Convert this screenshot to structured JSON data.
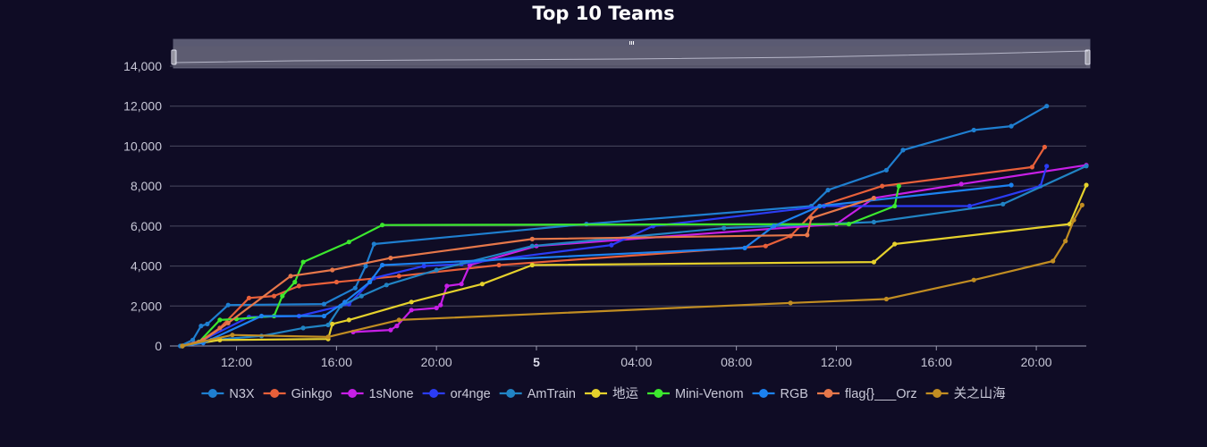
{
  "chart_data": {
    "type": "line",
    "title": "Top 10 Teams",
    "xlabel": "",
    "ylabel": "",
    "ylim": [
      0,
      14000
    ],
    "xlim": [
      "2024-01-04 09:20",
      "2024-01-05 22:00"
    ],
    "grid": true,
    "legend_position": "bottom",
    "x_ticks": [
      {
        "label": "12:00",
        "at": "2024-01-04 12:00"
      },
      {
        "label": "16:00",
        "at": "2024-01-04 16:00"
      },
      {
        "label": "20:00",
        "at": "2024-01-04 20:00"
      },
      {
        "label": "5",
        "at": "2024-01-05 00:00",
        "bold": true
      },
      {
        "label": "04:00",
        "at": "2024-01-05 04:00"
      },
      {
        "label": "08:00",
        "at": "2024-01-05 08:00"
      },
      {
        "label": "12:00",
        "at": "2024-01-05 12:00"
      },
      {
        "label": "16:00",
        "at": "2024-01-05 16:00"
      },
      {
        "label": "20:00",
        "at": "2024-01-05 20:00"
      }
    ],
    "y_ticks": [
      "0",
      "2,000",
      "4,000",
      "6,000",
      "8,000",
      "10,000",
      "12,000",
      "14,000"
    ],
    "series": [
      {
        "name": "N3X",
        "color": "#1f7fd0",
        "points": [
          [
            "2024-01-04 09:45",
            0
          ],
          [
            "2024-01-04 10:15",
            300
          ],
          [
            "2024-01-04 10:35",
            1000
          ],
          [
            "2024-01-04 10:50",
            1100
          ],
          [
            "2024-01-04 11:40",
            2050
          ],
          [
            "2024-01-04 15:30",
            2100
          ],
          [
            "2024-01-04 16:45",
            2900
          ],
          [
            "2024-01-04 17:10",
            4000
          ],
          [
            "2024-01-04 17:30",
            5100
          ],
          [
            "2024-01-05 02:00",
            6100
          ],
          [
            "2024-01-05 11:00",
            7000
          ],
          [
            "2024-01-05 11:40",
            7800
          ],
          [
            "2024-01-05 14:00",
            8800
          ],
          [
            "2024-01-05 14:40",
            9800
          ],
          [
            "2024-01-05 17:30",
            10800
          ],
          [
            "2024-01-05 19:00",
            11000
          ],
          [
            "2024-01-05 20:25",
            12000
          ]
        ]
      },
      {
        "name": "Ginkgo",
        "color": "#e8603a",
        "points": [
          [
            "2024-01-04 09:50",
            0
          ],
          [
            "2024-01-04 10:30",
            200
          ],
          [
            "2024-01-04 11:20",
            900
          ],
          [
            "2024-01-04 12:30",
            2400
          ],
          [
            "2024-01-04 13:30",
            2500
          ],
          [
            "2024-01-04 14:30",
            3000
          ],
          [
            "2024-01-04 16:00",
            3200
          ],
          [
            "2024-01-04 18:30",
            3500
          ],
          [
            "2024-01-04 22:30",
            4050
          ],
          [
            "2024-01-05 09:10",
            5000
          ],
          [
            "2024-01-05 10:10",
            5500
          ],
          [
            "2024-01-05 11:20",
            7000
          ],
          [
            "2024-01-05 13:50",
            8000
          ],
          [
            "2024-01-05 19:50",
            8950
          ],
          [
            "2024-01-05 20:20",
            9950
          ]
        ]
      },
      {
        "name": "1sNone",
        "color": "#c71fe6",
        "points": [
          [
            "2024-01-04 16:40",
            700
          ],
          [
            "2024-01-04 18:10",
            800
          ],
          [
            "2024-01-04 18:25",
            1000
          ],
          [
            "2024-01-04 19:00",
            1800
          ],
          [
            "2024-01-04 20:00",
            1900
          ],
          [
            "2024-01-04 20:10",
            2050
          ],
          [
            "2024-01-04 20:25",
            3000
          ],
          [
            "2024-01-04 21:00",
            3100
          ],
          [
            "2024-01-04 21:20",
            4050
          ],
          [
            "2024-01-05 00:00",
            5000
          ],
          [
            "2024-01-05 12:00",
            6100
          ],
          [
            "2024-01-05 13:30",
            7400
          ],
          [
            "2024-01-05 17:00",
            8100
          ],
          [
            "2024-01-05 22:00",
            9050
          ]
        ]
      },
      {
        "name": "or4nge",
        "color": "#2b3cf5",
        "points": [
          [
            "2024-01-04 09:50",
            0
          ],
          [
            "2024-01-04 10:30",
            200
          ],
          [
            "2024-01-04 12:30",
            1450
          ],
          [
            "2024-01-04 14:30",
            1500
          ],
          [
            "2024-01-04 16:30",
            2100
          ],
          [
            "2024-01-04 17:30",
            3400
          ],
          [
            "2024-01-04 19:30",
            4000
          ],
          [
            "2024-01-04 21:00",
            4100
          ],
          [
            "2024-01-05 03:00",
            5050
          ],
          [
            "2024-01-05 04:40",
            6000
          ],
          [
            "2024-01-05 11:30",
            7000
          ],
          [
            "2024-01-05 17:20",
            7000
          ],
          [
            "2024-01-05 20:10",
            8000
          ],
          [
            "2024-01-05 20:25",
            9000
          ]
        ]
      },
      {
        "name": "AmTrain",
        "color": "#2184c4",
        "points": [
          [
            "2024-01-04 09:50",
            0
          ],
          [
            "2024-01-04 11:00",
            300
          ],
          [
            "2024-01-04 13:00",
            500
          ],
          [
            "2024-01-04 14:40",
            900
          ],
          [
            "2024-01-04 15:40",
            1050
          ],
          [
            "2024-01-04 16:10",
            2000
          ],
          [
            "2024-01-04 17:00",
            2500
          ],
          [
            "2024-01-04 18:00",
            3050
          ],
          [
            "2024-01-04 20:00",
            3800
          ],
          [
            "2024-01-04 23:50",
            5000
          ],
          [
            "2024-01-05 07:30",
            5900
          ],
          [
            "2024-01-05 13:30",
            6200
          ],
          [
            "2024-01-05 18:40",
            7100
          ],
          [
            "2024-01-05 22:00",
            9000
          ]
        ]
      },
      {
        "name": "地运",
        "color": "#e5d12c",
        "points": [
          [
            "2024-01-04 09:50",
            0
          ],
          [
            "2024-01-04 11:20",
            300
          ],
          [
            "2024-01-04 15:40",
            350
          ],
          [
            "2024-01-04 15:50",
            1100
          ],
          [
            "2024-01-04 16:30",
            1300
          ],
          [
            "2024-01-04 19:00",
            2200
          ],
          [
            "2024-01-04 21:50",
            3100
          ],
          [
            "2024-01-04 23:50",
            4050
          ],
          [
            "2024-01-05 13:30",
            4200
          ],
          [
            "2024-01-05 14:20",
            5100
          ],
          [
            "2024-01-05 21:20",
            6100
          ],
          [
            "2024-01-05 22:00",
            8050
          ]
        ]
      },
      {
        "name": "Mini-Venom",
        "color": "#3ce82e",
        "points": [
          [
            "2024-01-04 09:50",
            0
          ],
          [
            "2024-01-04 10:30",
            200
          ],
          [
            "2024-01-04 11:20",
            1300
          ],
          [
            "2024-01-04 12:00",
            1350
          ],
          [
            "2024-01-04 13:30",
            1500
          ],
          [
            "2024-01-04 13:50",
            2500
          ],
          [
            "2024-01-04 14:20",
            3200
          ],
          [
            "2024-01-04 14:40",
            4200
          ],
          [
            "2024-01-04 16:30",
            5200
          ],
          [
            "2024-01-04 17:50",
            6050
          ],
          [
            "2024-01-05 12:30",
            6100
          ],
          [
            "2024-01-05 14:20",
            7000
          ],
          [
            "2024-01-05 14:30",
            8000
          ]
        ]
      },
      {
        "name": "RGB",
        "color": "#1c82f0",
        "points": [
          [
            "2024-01-04 09:50",
            0
          ],
          [
            "2024-01-04 10:40",
            150
          ],
          [
            "2024-01-04 13:00",
            1500
          ],
          [
            "2024-01-04 15:30",
            1500
          ],
          [
            "2024-01-04 16:20",
            2200
          ],
          [
            "2024-01-04 17:20",
            3200
          ],
          [
            "2024-01-04 17:50",
            4050
          ],
          [
            "2024-01-05 08:20",
            4900
          ],
          [
            "2024-01-05 09:30",
            6000
          ],
          [
            "2024-01-05 11:20",
            7000
          ],
          [
            "2024-01-05 19:00",
            8050
          ]
        ]
      },
      {
        "name": "flag{}___Orz",
        "color": "#e6774a",
        "points": [
          [
            "2024-01-04 09:50",
            0
          ],
          [
            "2024-01-04 10:40",
            300
          ],
          [
            "2024-01-04 11:40",
            1150
          ],
          [
            "2024-01-04 14:10",
            3500
          ],
          [
            "2024-01-04 15:50",
            3800
          ],
          [
            "2024-01-04 18:10",
            4400
          ],
          [
            "2024-01-04 23:50",
            5350
          ],
          [
            "2024-01-05 10:50",
            5550
          ],
          [
            "2024-01-05 11:00",
            6400
          ],
          [
            "2024-01-05 13:30",
            7400
          ]
        ]
      },
      {
        "name": "关之山海",
        "color": "#c18d22",
        "points": [
          [
            "2024-01-04 09:50",
            0
          ],
          [
            "2024-01-04 11:50",
            550
          ],
          [
            "2024-01-04 15:40",
            450
          ],
          [
            "2024-01-04 18:30",
            1300
          ],
          [
            "2024-01-05 10:10",
            2150
          ],
          [
            "2024-01-05 14:00",
            2350
          ],
          [
            "2024-01-05 17:30",
            3300
          ],
          [
            "2024-01-05 20:40",
            4250
          ],
          [
            "2024-01-05 21:10",
            5250
          ],
          [
            "2024-01-05 21:30",
            6300
          ],
          [
            "2024-01-05 21:50",
            7050
          ]
        ]
      }
    ]
  }
}
